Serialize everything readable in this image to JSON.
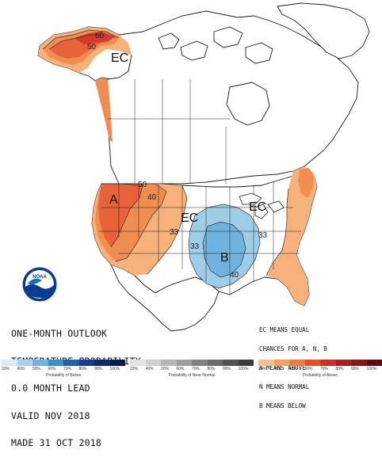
{
  "map": {
    "labels": {
      "ec_alaska": "EC",
      "ec_midwest": "EC",
      "ec_great_lakes": "EC",
      "above_west": "A",
      "below_south": "B"
    },
    "contours": {
      "alaska_50": "50",
      "alaska_60": "60",
      "west_50": "50",
      "west_40": "40",
      "central_33": "33",
      "plains_33": "33",
      "south_40": "40",
      "east_33": "33"
    },
    "colors": {
      "above_33": "#f6b27a",
      "above_40": "#f08e52",
      "above_50": "#e8623a",
      "above_60": "#d63a2c",
      "below_33": "#9fcde8",
      "below_40": "#6fb3df",
      "ocean": "#ffffff",
      "land": "#ffffff",
      "border": "#1a1a1a"
    }
  },
  "outlook": {
    "line1": "ONE-MONTH OUTLOOK",
    "line2": "TEMPERATURE PROBABILITY",
    "line3": "0.0 MONTH LEAD",
    "line4": "VALID NOV 2018",
    "line5": "MADE 31 OCT 2018"
  },
  "legend": {
    "line1": "EC MEANS EQUAL",
    "line2": "CHANCES FOR A, N, B",
    "line3": "A MEANS ABOVE",
    "line4": "N MEANS NORMAL",
    "line5": "B MEANS BELOW"
  },
  "logo": {
    "text": "NOAA"
  },
  "colorbar": {
    "below": {
      "caption": "Probability of Below",
      "ticks": [
        "33%",
        "40%",
        "50%",
        "60%",
        "70%",
        "80%",
        "90%",
        "100%"
      ],
      "colors": [
        "#d8ebf6",
        "#a9d3ee",
        "#6fb3df",
        "#3b8fcf",
        "#2061a9",
        "#173f8a",
        "#102a6b",
        "#081a48"
      ]
    },
    "normal": {
      "caption": "Probability of Near-Normal",
      "ticks": [
        "33%",
        "40%",
        "50%",
        "60%",
        "70%",
        "80%",
        "90%",
        "100%"
      ],
      "colors": [
        "#e4e4e4",
        "#cfcfcf",
        "#b7b7b7",
        "#9d9d9d",
        "#838383",
        "#6a6a6a",
        "#525252",
        "#3a3a3a"
      ]
    },
    "above": {
      "caption": "Probability of Above",
      "ticks": [
        "33%",
        "40%",
        "50%",
        "60%",
        "70%",
        "80%",
        "90%",
        "100%"
      ],
      "colors": [
        "#f6c38f",
        "#f3a160",
        "#ed7b40",
        "#e2502c",
        "#cc2f26",
        "#a81e22",
        "#85141d",
        "#5e0c14"
      ]
    }
  }
}
